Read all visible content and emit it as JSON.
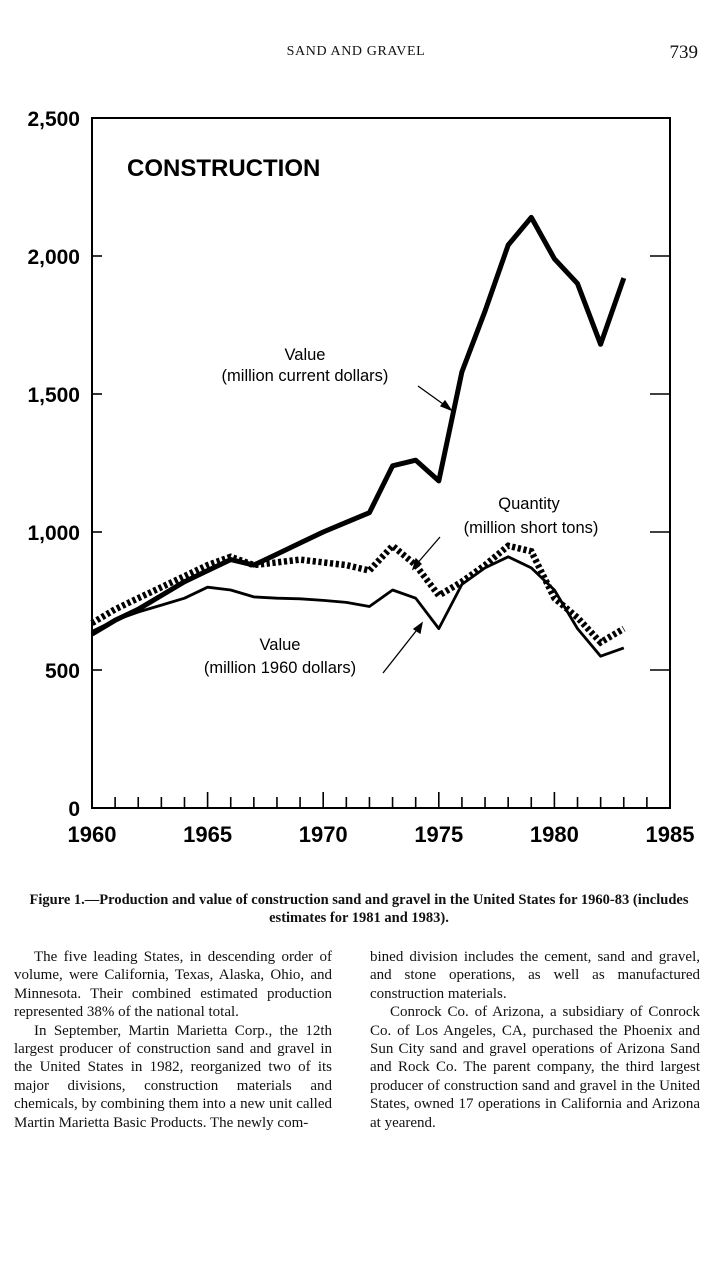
{
  "header": {
    "running_title": "SAND AND GRAVEL",
    "page_number": "739"
  },
  "chart_data": {
    "type": "line",
    "title": "CONSTRUCTION",
    "xlabel": "",
    "ylabel": "",
    "xlim": [
      1960,
      1985
    ],
    "ylim": [
      0,
      2500
    ],
    "x_ticks": [
      "1960",
      "1965",
      "1970",
      "1975",
      "1980",
      "1985"
    ],
    "y_ticks": [
      "0",
      "500",
      "1,000",
      "1,500",
      "2,000",
      "2,500"
    ],
    "x": [
      1960,
      1961,
      1962,
      1963,
      1964,
      1965,
      1966,
      1967,
      1968,
      1969,
      1970,
      1971,
      1972,
      1973,
      1974,
      1975,
      1976,
      1977,
      1978,
      1979,
      1980,
      1981,
      1982,
      1983
    ],
    "series": [
      {
        "name": "Value (million current dollars)",
        "label_lines": [
          "Value",
          "(million current dollars)"
        ],
        "style": "thick",
        "values": [
          630,
          680,
          720,
          770,
          820,
          860,
          900,
          880,
          920,
          960,
          1000,
          1035,
          1070,
          1240,
          1260,
          1185,
          1580,
          1800,
          2040,
          2140,
          1990,
          1900,
          1680,
          1920
        ]
      },
      {
        "name": "Quantity (million short tons)",
        "label_lines": [
          "Quantity",
          "(million short tons)"
        ],
        "style": "dashed",
        "values": [
          670,
          720,
          760,
          800,
          840,
          880,
          910,
          880,
          890,
          900,
          890,
          880,
          860,
          950,
          880,
          770,
          820,
          880,
          950,
          930,
          760,
          690,
          600,
          650
        ]
      },
      {
        "name": "Value (million 1960 dollars)",
        "label_lines": [
          "Value",
          "(million 1960 dollars)"
        ],
        "style": "thin",
        "values": [
          640,
          680,
          710,
          735,
          760,
          800,
          790,
          765,
          760,
          758,
          752,
          745,
          730,
          790,
          760,
          650,
          810,
          870,
          910,
          870,
          790,
          650,
          550,
          580
        ]
      }
    ]
  },
  "caption": "Figure 1.—Production and value of construction sand and gravel in the United States for 1960-83 (includes estimates for 1981 and 1983).",
  "body": {
    "left_paragraphs": [
      "The five leading States, in descending order of volume, were California, Texas, Alaska, Ohio, and Minnesota. Their combined estimated production represented 38% of the national total.",
      "In September, Martin Marietta Corp., the 12th largest producer of construction sand and gravel in the United States in 1982, reorganized two of its major divisions, construction materials and chemicals, by combining them into a new unit called Martin Marietta Basic Products. The newly com-"
    ],
    "right_paragraphs": [
      "bined division includes the cement, sand and gravel, and stone operations, as well as manufactured construction materials.",
      "Conrock Co. of Arizona, a subsidiary of Conrock Co. of Los Angeles, CA, purchased the Phoenix and Sun City sand and gravel operations of Arizona Sand and Rock Co. The parent company, the third largest producer of construction sand and gravel in the United States, owned 17 operations in California and Arizona at yearend."
    ]
  }
}
